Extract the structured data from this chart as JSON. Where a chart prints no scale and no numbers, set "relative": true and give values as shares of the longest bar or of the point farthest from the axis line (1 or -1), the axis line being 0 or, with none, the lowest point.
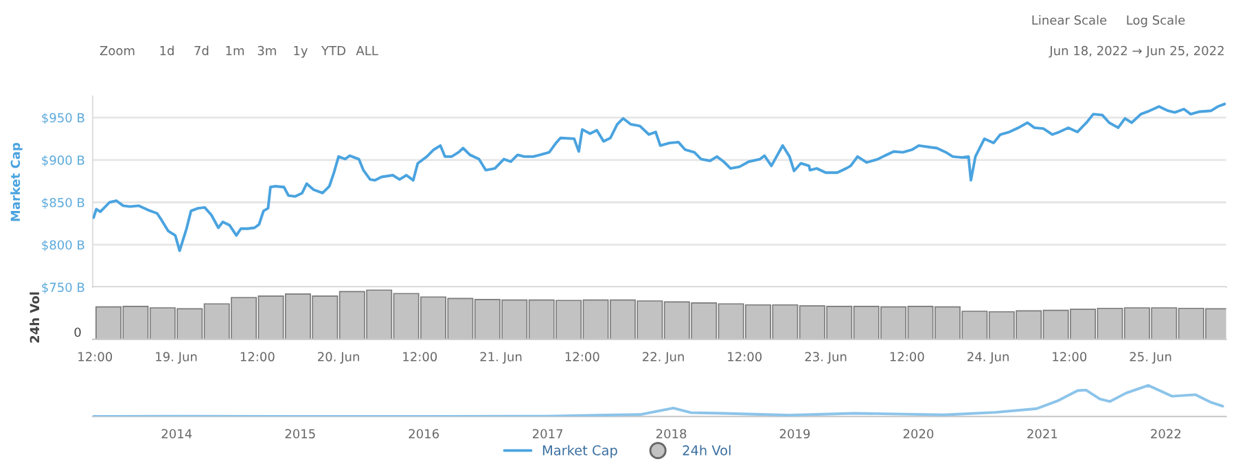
{
  "chart_data": [
    {
      "type": "line",
      "ylabel": "Market Cap",
      "legend": "bottom",
      "grid": "y",
      "tick_labels": "y",
      "annotations": [
        "Zoom",
        "1d",
        "7d",
        "1m",
        "3m",
        "1y",
        "YTD",
        "ALL",
        "Linear Scale",
        "Log Scale",
        "Jun 18, 2022 → Jun 25, 2022"
      ],
      "xlim": [
        "2022-06-18T11:40",
        "2022-06-25T11:10"
      ],
      "xticks": [
        {
          "value": "2022-06-18T12:00",
          "label": null
        },
        {
          "value": "2022-06-19T00:00",
          "label": null
        },
        {
          "value": "2022-06-19T12:00",
          "label": null
        },
        {
          "value": "2022-06-20T00:00",
          "label": null
        },
        {
          "value": "2022-06-20T12:00",
          "label": null
        },
        {
          "value": "2022-06-21T00:00",
          "label": null
        },
        {
          "value": "2022-06-21T12:00",
          "label": null
        },
        {
          "value": "2022-06-22T00:00",
          "label": null
        },
        {
          "value": "2022-06-22T12:00",
          "label": null
        },
        {
          "value": "2022-06-23T00:00",
          "label": null
        },
        {
          "value": "2022-06-23T12:00",
          "label": null
        },
        {
          "value": "2022-06-24T00:00",
          "label": null
        },
        {
          "value": "2022-06-24T12:00",
          "label": null
        },
        {
          "value": "2022-06-25T00:00",
          "label": null
        }
      ],
      "ylim": [
        750,
        975
      ],
      "yticks": [
        {
          "value": 750,
          "label": "$750 B"
        },
        {
          "value": 800,
          "label": "$800 B"
        },
        {
          "value": 850,
          "label": "$850 B"
        },
        {
          "value": 900,
          "label": "$900 B"
        },
        {
          "value": 950,
          "label": "$950 B"
        }
      ],
      "series": [
        {
          "name": "Market Cap",
          "color": "#4aa3df",
          "x": [
            "2022-06-18T11:48",
            "2022-06-18T12:12",
            "2022-06-18T12:48",
            "2022-06-18T14:09",
            "2022-06-18T15:09",
            "2022-06-18T16:10",
            "2022-06-18T17:10",
            "2022-06-18T18:30",
            "2022-06-18T19:50",
            "2022-06-18T21:11",
            "2022-06-18T21:51",
            "2022-06-18T22:51",
            "2022-06-18T23:52",
            "2022-06-19T00:31",
            "2022-06-19T01:32",
            "2022-06-19T02:12",
            "2022-06-19T03:13",
            "2022-06-19T04:13",
            "2022-06-19T05:13",
            "2022-06-19T06:14",
            "2022-06-19T06:54",
            "2022-06-19T07:54",
            "2022-06-19T08:54",
            "2022-06-19T09:34",
            "2022-06-19T10:34",
            "2022-06-19T11:35",
            "2022-06-19T12:15",
            "2022-06-19T12:55",
            "2022-06-19T13:35",
            "2022-06-19T13:56",
            "2022-06-19T14:36",
            "2022-06-19T15:56",
            "2022-06-19T16:36",
            "2022-06-19T17:37",
            "2022-06-19T18:37",
            "2022-06-19T19:17",
            "2022-06-19T20:18",
            "2022-06-19T21:38",
            "2022-06-19T22:38",
            "2022-06-19T23:19",
            "2022-06-20T00:00",
            "2022-06-20T00:59",
            "2022-06-20T01:39",
            "2022-06-20T03:00",
            "2022-06-20T03:40",
            "2022-06-20T04:40",
            "2022-06-20T05:21",
            "2022-06-20T06:21",
            "2022-06-20T08:01",
            "2022-06-20T09:01",
            "2022-06-20T10:02",
            "2022-06-20T11:02",
            "2022-06-20T11:42",
            "2022-06-20T13:03",
            "2022-06-20T14:03",
            "2022-06-20T15:03",
            "2022-06-20T15:43",
            "2022-06-20T16:43",
            "2022-06-20T17:44",
            "2022-06-20T18:24",
            "2022-06-20T19:25",
            "2022-06-20T20:45",
            "2022-06-20T21:45",
            "2022-06-20T23:06",
            "2022-06-21T00:26",
            "2022-06-21T01:27",
            "2022-06-21T02:27",
            "2022-06-21T03:27",
            "2022-06-21T04:47",
            "2022-06-21T05:47",
            "2022-06-21T07:08",
            "2022-06-21T08:08",
            "2022-06-21T08:48",
            "2022-06-21T10:49",
            "2022-06-21T11:30",
            "2022-06-21T12:01",
            "2022-06-21T13:10",
            "2022-06-21T14:10",
            "2022-06-21T15:10",
            "2022-06-21T16:11",
            "2022-06-21T17:11",
            "2022-06-21T18:03",
            "2022-06-21T19:12",
            "2022-06-21T20:32",
            "2022-06-21T21:52",
            "2022-06-21T22:52",
            "2022-06-21T23:33",
            "2022-06-22T00:53",
            "2022-06-22T02:14",
            "2022-06-22T03:14",
            "2022-06-22T04:35",
            "2022-06-22T05:35",
            "2022-06-22T06:55",
            "2022-06-22T07:55",
            "2022-06-22T08:55",
            "2022-06-22T09:56",
            "2022-06-22T11:16",
            "2022-06-22T12:37",
            "2022-06-22T14:17",
            "2022-06-22T14:57",
            "2022-06-22T15:58",
            "2022-06-22T17:38",
            "2022-06-22T18:39",
            "2022-06-22T19:19",
            "2022-06-22T20:19",
            "2022-06-22T21:32",
            "2022-06-22T21:40",
            "2022-06-22T22:40",
            "2022-06-23T00:00",
            "2022-06-23T01:41",
            "2022-06-23T03:01",
            "2022-06-23T03:41",
            "2022-06-23T04:42",
            "2022-06-23T06:02",
            "2022-06-23T07:43",
            "2022-06-23T08:43",
            "2022-06-23T10:03",
            "2022-06-23T11:24",
            "2022-06-23T12:44",
            "2022-06-23T13:45",
            "2022-06-23T15:25",
            "2022-06-23T16:25",
            "2022-06-23T17:46",
            "2022-06-23T18:46",
            "2022-06-23T20:06",
            "2022-06-23T21:06",
            "2022-06-23T21:27",
            "2022-06-23T22:07",
            "2022-06-23T23:27",
            "2022-06-24T00:48",
            "2022-06-24T01:48",
            "2022-06-24T03:08",
            "2022-06-24T04:29",
            "2022-06-24T05:49",
            "2022-06-24T06:50",
            "2022-06-24T08:10",
            "2022-06-24T09:30",
            "2022-06-24T10:31",
            "2022-06-24T11:51",
            "2022-06-24T13:11",
            "2022-06-24T14:32",
            "2022-06-24T15:32",
            "2022-06-24T16:52",
            "2022-06-24T17:53",
            "2022-06-24T19:13",
            "2022-06-24T20:13",
            "2022-06-24T21:13",
            "2022-06-24T22:34",
            "2022-06-24T23:34",
            "2022-06-25T01:15",
            "2022-06-25T02:35",
            "2022-06-25T03:35",
            "2022-06-25T04:56",
            "2022-06-25T05:56",
            "2022-06-25T07:16",
            "2022-06-25T08:57",
            "2022-06-25T09:57",
            "2022-06-25T10:57"
          ],
          "values": [
            832,
            842,
            839,
            850,
            852,
            846,
            845,
            846,
            841,
            837,
            829,
            816,
            811,
            793,
            819,
            840,
            843,
            844,
            835,
            820,
            827,
            823,
            811,
            819,
            819,
            820,
            824,
            840,
            843,
            868,
            869,
            868,
            858,
            857,
            861,
            872,
            865,
            861,
            869,
            885,
            904,
            901,
            905,
            901,
            888,
            877,
            876,
            880,
            882,
            877,
            882,
            876,
            896,
            904,
            912,
            917,
            904,
            904,
            909,
            914,
            906,
            901,
            888,
            890,
            901,
            898,
            906,
            904,
            904,
            906,
            909,
            920,
            926,
            925,
            910,
            936,
            931,
            935,
            922,
            926,
            942,
            949,
            942,
            940,
            930,
            933,
            917,
            920,
            921,
            912,
            909,
            901,
            899,
            904,
            898,
            890,
            892,
            898,
            901,
            905,
            893,
            917,
            904,
            887,
            896,
            893,
            888,
            890,
            885,
            885,
            890,
            893,
            904,
            897,
            901,
            905,
            910,
            909,
            912,
            917,
            915,
            914,
            909,
            904,
            903,
            904,
            876,
            904,
            925,
            920,
            930,
            933,
            938,
            944,
            938,
            937,
            930,
            933,
            938,
            933,
            944,
            954,
            953,
            944,
            938,
            949,
            944,
            954,
            957,
            963,
            958,
            956,
            960,
            954,
            957,
            958,
            963,
            966
          ]
        }
      ]
    },
    {
      "type": "bar",
      "ylabel": "24h Vol",
      "relative": true,
      "legend": "bottom",
      "tick_labels": "x",
      "annotations": [
        "0"
      ],
      "xlim": [
        "2022-06-18T11:40",
        "2022-06-25T11:10"
      ],
      "xticks": [
        {
          "value": "2022-06-18T12:00",
          "label": "12:00"
        },
        {
          "value": "2022-06-19T00:00",
          "label": "19. Jun"
        },
        {
          "value": "2022-06-19T12:00",
          "label": "12:00"
        },
        {
          "value": "2022-06-20T00:00",
          "label": "20. Jun"
        },
        {
          "value": "2022-06-20T12:00",
          "label": "12:00"
        },
        {
          "value": "2022-06-21T00:00",
          "label": "21. Jun"
        },
        {
          "value": "2022-06-21T12:00",
          "label": "12:00"
        },
        {
          "value": "2022-06-22T00:00",
          "label": "22. Jun"
        },
        {
          "value": "2022-06-22T12:00",
          "label": "12:00"
        },
        {
          "value": "2022-06-23T00:00",
          "label": "23. Jun"
        },
        {
          "value": "2022-06-23T12:00",
          "label": "12:00"
        },
        {
          "value": "2022-06-24T00:00",
          "label": "24. Jun"
        },
        {
          "value": "2022-06-24T12:00",
          "label": "12:00"
        },
        {
          "value": "2022-06-25T00:00",
          "label": "25. Jun"
        }
      ],
      "series": [
        {
          "name": "24h Vol",
          "color": "#c2c2c2",
          "x": [
            "2022-06-18T14:00",
            "2022-06-18T18:00",
            "2022-06-18T22:00",
            "2022-06-19T02:00",
            "2022-06-19T06:00",
            "2022-06-19T10:00",
            "2022-06-19T14:00",
            "2022-06-19T18:00",
            "2022-06-19T22:00",
            "2022-06-20T02:00",
            "2022-06-20T06:00",
            "2022-06-20T10:00",
            "2022-06-20T14:00",
            "2022-06-20T18:00",
            "2022-06-20T22:00",
            "2022-06-21T02:00",
            "2022-06-21T06:00",
            "2022-06-21T10:00",
            "2022-06-21T14:00",
            "2022-06-21T18:00",
            "2022-06-21T22:00",
            "2022-06-22T02:00",
            "2022-06-22T06:00",
            "2022-06-22T10:00",
            "2022-06-22T14:00",
            "2022-06-22T18:00",
            "2022-06-22T22:00",
            "2022-06-23T02:00",
            "2022-06-23T06:00",
            "2022-06-23T10:00",
            "2022-06-23T14:00",
            "2022-06-23T18:00",
            "2022-06-23T22:00",
            "2022-06-24T02:00",
            "2022-06-24T06:00",
            "2022-06-24T10:00",
            "2022-06-24T14:00",
            "2022-06-24T18:00",
            "2022-06-24T22:00",
            "2022-06-25T02:00",
            "2022-06-25T06:00",
            "2022-06-25T10:00"
          ],
          "values": [
            0.66,
            0.67,
            0.64,
            0.62,
            0.72,
            0.85,
            0.88,
            0.92,
            0.88,
            0.97,
            1.0,
            0.93,
            0.86,
            0.83,
            0.81,
            0.8,
            0.8,
            0.79,
            0.8,
            0.8,
            0.78,
            0.76,
            0.74,
            0.72,
            0.7,
            0.7,
            0.68,
            0.67,
            0.67,
            0.66,
            0.67,
            0.66,
            0.57,
            0.56,
            0.58,
            0.59,
            0.61,
            0.63,
            0.64,
            0.64,
            0.63,
            0.62
          ]
        }
      ]
    },
    {
      "type": "line",
      "relative": true,
      "tick_labels": "x",
      "xlim": [
        "2013-04-28",
        "2022-06-28"
      ],
      "xticks": [
        {
          "value": "2014-01-01",
          "label": "2014"
        },
        {
          "value": "2015-01-01",
          "label": "2015"
        },
        {
          "value": "2016-01-01",
          "label": "2016"
        },
        {
          "value": "2017-01-01",
          "label": "2017"
        },
        {
          "value": "2018-01-01",
          "label": "2018"
        },
        {
          "value": "2019-01-01",
          "label": "2019"
        },
        {
          "value": "2020-01-01",
          "label": "2020"
        },
        {
          "value": "2021-01-01",
          "label": "2021"
        },
        {
          "value": "2022-01-01",
          "label": "2022"
        }
      ],
      "series": [
        {
          "color": "#8cc4ea",
          "x": [
            "2013-05-01",
            "2014-01-01",
            "2015-01-01",
            "2016-01-01",
            "2017-01-01",
            "2017-06-01",
            "2017-10-01",
            "2018-01-07",
            "2018-03-01",
            "2018-06-01",
            "2018-12-15",
            "2019-06-25",
            "2019-12-15",
            "2020-03-15",
            "2020-08-15",
            "2020-12-15",
            "2021-02-15",
            "2021-04-15",
            "2021-05-10",
            "2021-06-20",
            "2021-07-20",
            "2021-09-05",
            "2021-11-10",
            "2022-01-20",
            "2022-03-30",
            "2022-05-15",
            "2022-06-18"
          ],
          "values": [
            0.0,
            0.005,
            0.002,
            0.003,
            0.006,
            0.04,
            0.06,
            0.27,
            0.12,
            0.1,
            0.04,
            0.1,
            0.07,
            0.05,
            0.13,
            0.25,
            0.5,
            0.83,
            0.85,
            0.56,
            0.48,
            0.75,
            1.0,
            0.65,
            0.7,
            0.45,
            0.33
          ]
        }
      ]
    }
  ]
}
